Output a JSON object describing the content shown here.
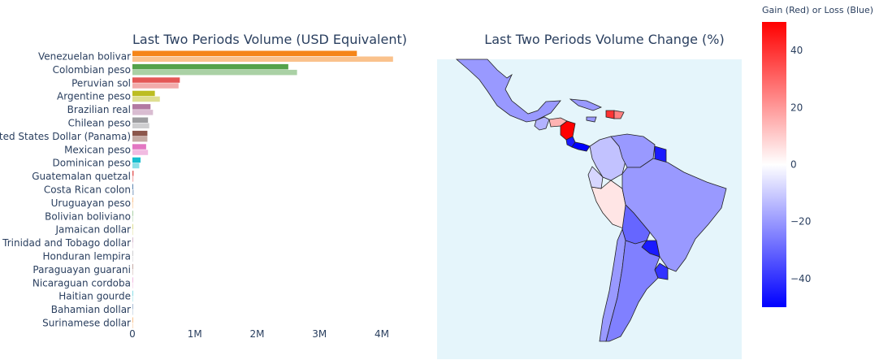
{
  "chart_data": [
    {
      "type": "bar",
      "orientation": "horizontal",
      "title": "Last Two Periods Volume (USD Equivalent)",
      "categories": [
        "Venezuelan bolivar",
        "Colombian peso",
        "Peruvian sol",
        "Argentine peso",
        "Brazilian real",
        "Chilean peso",
        "United States Dollar (Panama)",
        "Mexican peso",
        "Dominican peso",
        "Guatemalan quetzal",
        "Costa Rican colon",
        "Uruguayan peso",
        "Bolivian boliviano",
        "Jamaican dollar",
        "Trinidad and Tobago dollar",
        "Honduran lempira",
        "Paraguayan guarani",
        "Nicaraguan cordoba",
        "Haitian gourde",
        "Bahamian dollar",
        "Surinamese dollar"
      ],
      "series": [
        {
          "values": [
            3600000,
            2500000,
            760000,
            360000,
            290000,
            250000,
            240000,
            220000,
            130000,
            18000,
            12000,
            6000,
            4000,
            3000,
            2000,
            1500,
            1000,
            800,
            600,
            400,
            300
          ]
        },
        {
          "values": [
            4180000,
            2640000,
            740000,
            440000,
            330000,
            270000,
            240000,
            250000,
            110000,
            15000,
            20000,
            8000,
            5000,
            4000,
            3000,
            2000,
            1500,
            1000,
            800,
            500,
            400
          ]
        }
      ],
      "colors": [
        "#f58518",
        "#54a24b",
        "#e45756",
        "#bcbd22",
        "#b279a2",
        "#9d9da0",
        "#8c564b",
        "#e377c2",
        "#17becf",
        "#e45756",
        "#4c78a8",
        "#f58518",
        "#54a24b",
        "#bcbd22",
        "#b279a2",
        "#9d9da0",
        "#8c564b",
        "#e377c2",
        "#17becf",
        "#4c78a8",
        "#f58518"
      ],
      "xlim": [
        0,
        4400000
      ],
      "xticks": [
        {
          "value": 0,
          "label": "0"
        },
        {
          "value": 1000000,
          "label": "1M"
        },
        {
          "value": 2000000,
          "label": "2M"
        },
        {
          "value": 3000000,
          "label": "3M"
        },
        {
          "value": 4000000,
          "label": "4M"
        }
      ]
    },
    {
      "type": "choropleth",
      "title": "Last Two Periods Volume Change (%)",
      "colorbar_title": "Gain (Red) or Loss (Blue)",
      "zlim": [
        -50,
        50
      ],
      "colorbar_ticks": [
        {
          "value": 40,
          "label": "40"
        },
        {
          "value": 20,
          "label": "20"
        },
        {
          "value": 0,
          "label": "0"
        },
        {
          "value": -20,
          "label": "−20"
        },
        {
          "value": -40,
          "label": "−40"
        }
      ],
      "colorscale": [
        "#0000ff",
        "#ffffff",
        "#ff0000"
      ],
      "background": "#e5f5fb",
      "regions": [
        {
          "name": "Mexico",
          "value": -20
        },
        {
          "name": "Guatemala",
          "value": -15
        },
        {
          "name": "Honduras",
          "value": 15
        },
        {
          "name": "Nicaragua",
          "value": 50
        },
        {
          "name": "Costa Rica",
          "value": -45
        },
        {
          "name": "Panama",
          "value": -50
        },
        {
          "name": "Colombia",
          "value": -12
        },
        {
          "name": "Venezuela",
          "value": -20
        },
        {
          "name": "Suriname",
          "value": -45
        },
        {
          "name": "Peru",
          "value": 5
        },
        {
          "name": "Ecuador",
          "value": -8
        },
        {
          "name": "Brazil",
          "value": -20
        },
        {
          "name": "Bolivia",
          "value": -30
        },
        {
          "name": "Paraguay",
          "value": -45
        },
        {
          "name": "Chile",
          "value": -20
        },
        {
          "name": "Argentina",
          "value": -25
        },
        {
          "name": "Uruguay",
          "value": -40
        },
        {
          "name": "Cuba",
          "value": -20
        },
        {
          "name": "Jamaica",
          "value": -20
        },
        {
          "name": "Haiti",
          "value": 40
        },
        {
          "name": "Dominican Republic",
          "value": 25
        }
      ]
    }
  ]
}
